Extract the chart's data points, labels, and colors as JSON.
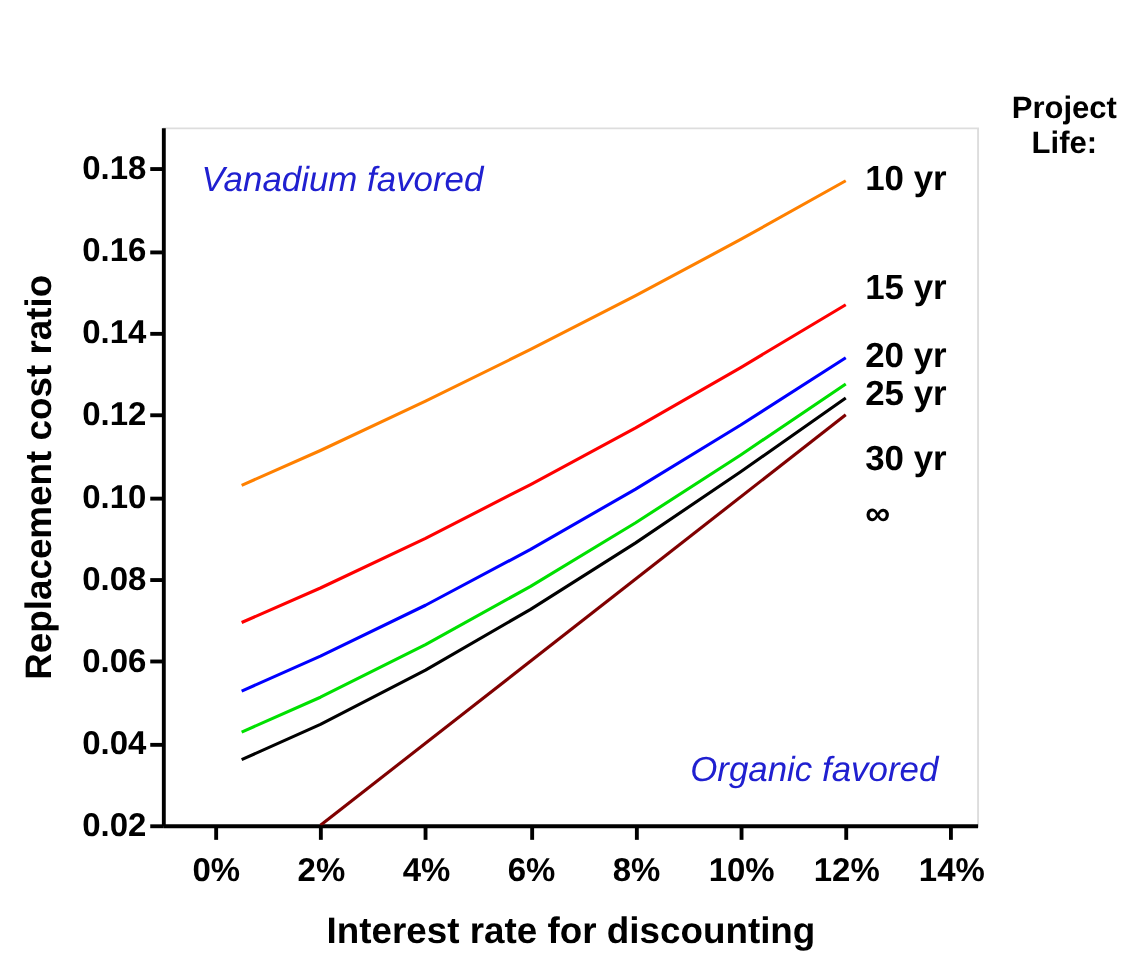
{
  "chart_data": {
    "type": "line",
    "xlabel": "Interest rate for discounting",
    "ylabel": "Replacement cost ratio",
    "legend_title": "Project Life:",
    "series": [
      {
        "name": "10 yr",
        "color": "#ff8000",
        "x": [
          0.5,
          2,
          4,
          6,
          8,
          10,
          12
        ],
        "values": [
          0.1028,
          0.1113,
          0.1233,
          0.1359,
          0.149,
          0.1627,
          0.177
        ]
      },
      {
        "name": "15 yr",
        "color": "#ff0000",
        "x": [
          0.5,
          2,
          4,
          6,
          8,
          10,
          12
        ],
        "values": [
          0.0694,
          0.0778,
          0.0899,
          0.103,
          0.1168,
          0.1315,
          0.1468
        ]
      },
      {
        "name": "20 yr",
        "color": "#0000ff",
        "x": [
          0.5,
          2,
          4,
          6,
          8,
          10,
          12
        ],
        "values": [
          0.0527,
          0.0612,
          0.0736,
          0.0872,
          0.1019,
          0.1175,
          0.1339
        ]
      },
      {
        "name": "25 yr",
        "color": "#00e000",
        "x": [
          0.5,
          2,
          4,
          6,
          8,
          10,
          12
        ],
        "values": [
          0.0427,
          0.0512,
          0.064,
          0.0782,
          0.0937,
          0.1102,
          0.1275
        ]
      },
      {
        "name": "30 yr",
        "color": "#000000",
        "x": [
          0.5,
          2,
          4,
          6,
          8,
          10,
          12
        ],
        "values": [
          0.036,
          0.0446,
          0.0578,
          0.0726,
          0.0888,
          0.1061,
          0.1241
        ]
      },
      {
        "name": "∞",
        "color": "#800000",
        "x": [
          2,
          12
        ],
        "values": [
          0.02,
          0.12
        ]
      }
    ],
    "annotations": [
      "Vanadium favored",
      "Organic favored"
    ],
    "xlim": [
      -1,
      14.5
    ],
    "xticks": [
      {
        "value": 0,
        "label": "0%"
      },
      {
        "value": 2,
        "label": "2%"
      },
      {
        "value": 4,
        "label": "4%"
      },
      {
        "value": 6,
        "label": "6%"
      },
      {
        "value": 8,
        "label": "8%"
      },
      {
        "value": 10,
        "label": "10%"
      },
      {
        "value": 12,
        "label": "12%"
      },
      {
        "value": 14,
        "label": "14%"
      }
    ],
    "ylim": [
      0.02,
      0.19
    ],
    "yticks": [
      0.02,
      0.04,
      0.06,
      0.08,
      {
        "value": 0.1,
        "label": "0.10"
      },
      0.12,
      0.14,
      0.16,
      0.18
    ],
    "grid": false,
    "legend": "right",
    "line_style": "solid",
    "marker": "none"
  }
}
